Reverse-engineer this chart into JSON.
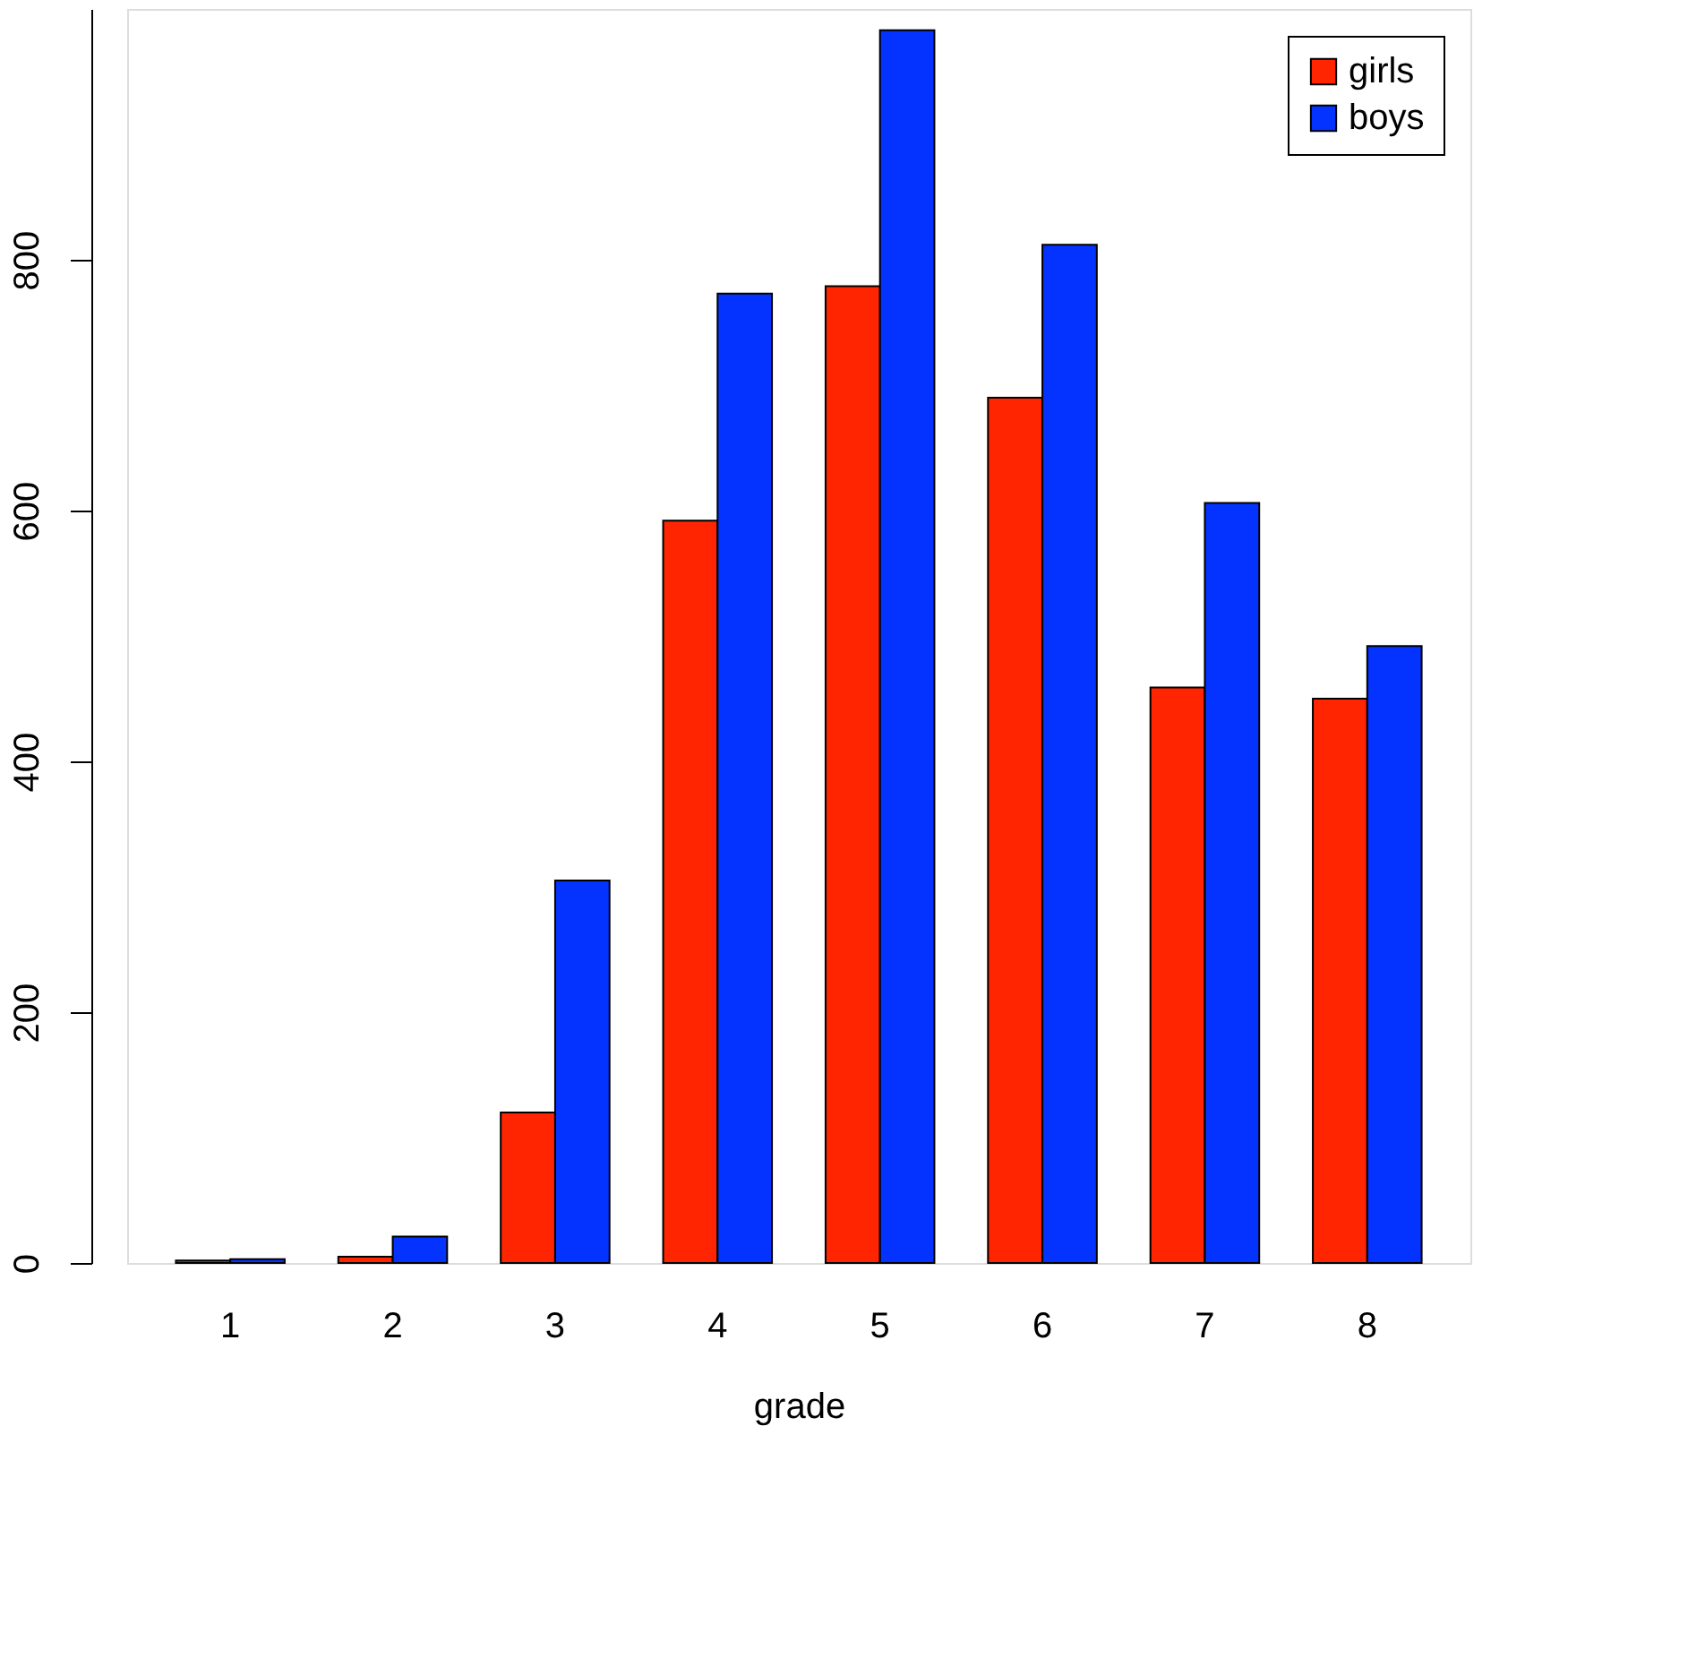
{
  "chart_data": {
    "type": "bar",
    "xlabel": "grade",
    "categories": [
      "1",
      "2",
      "3",
      "4",
      "5",
      "6",
      "7",
      "8"
    ],
    "series": [
      {
        "name": "girls",
        "color": "#ff2500",
        "values": [
          2,
          5,
          120,
          592,
          779,
          690,
          459,
          450
        ]
      },
      {
        "name": "boys",
        "color": "#0433ff",
        "values": [
          3,
          21,
          305,
          773,
          983,
          812,
          606,
          492
        ]
      }
    ],
    "ylim": [
      0,
      1000
    ],
    "yticks": [
      0,
      200,
      400,
      600,
      800
    ],
    "grid": false,
    "legend": "top right"
  }
}
